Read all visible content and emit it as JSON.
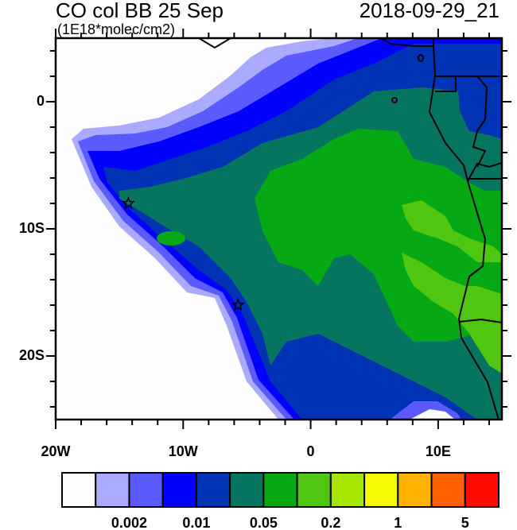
{
  "header": {
    "title": "CO col BB 25 Sep",
    "units": "(1E18*molec/cm2)",
    "datetime": "2018-09-29_21"
  },
  "map": {
    "lon_range": [
      -20,
      15
    ],
    "lat_range": [
      -25,
      5
    ],
    "lon_labels": [
      {
        "lon": -20,
        "text": "20W"
      },
      {
        "lon": -10,
        "text": "10W"
      },
      {
        "lon": 0,
        "text": "0"
      },
      {
        "lon": 10,
        "text": "10E"
      }
    ],
    "lat_labels": [
      {
        "lat": 0,
        "text": "0"
      },
      {
        "lat": -10,
        "text": "10S"
      },
      {
        "lat": -20,
        "text": "20S"
      }
    ],
    "markers": [
      {
        "type": "star",
        "lon": -14.3,
        "lat": -8.0
      },
      {
        "type": "star",
        "lon": -5.7,
        "lat": -16.0
      }
    ]
  },
  "colorbar": {
    "colors": [
      "#fefefe",
      "#aaaaff",
      "#5a5aff",
      "#0000ff",
      "#0033b3",
      "#057560",
      "#06a814",
      "#4fc60f",
      "#a6e600",
      "#f5fa00",
      "#ffb300",
      "#ff6000",
      "#ff0a00"
    ],
    "labels": [
      "0.002",
      "0.01",
      "0.05",
      "0.2",
      "1",
      "5"
    ]
  }
}
